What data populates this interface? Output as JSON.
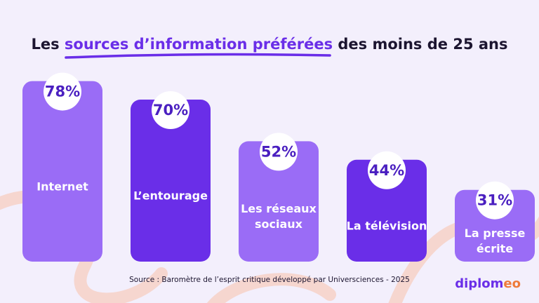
{
  "title": {
    "prefix": "Les",
    "highlight": "sources d’information préférées",
    "suffix": "des moins de 25 ans"
  },
  "source": "Source : Baromètre de l’esprit critique développé par Universciences - 2025",
  "brand": {
    "main": "diplom",
    "accent": "eo"
  },
  "colors": {
    "background": "#f3effc",
    "bar_light": "#9a6cf6",
    "bar_dark": "#6a2ee8",
    "value_text": "#4a1fc0",
    "accent_curve": "#f6d6cf",
    "brand_accent": "#ee7a3a"
  },
  "chart_data": {
    "type": "bar",
    "categories": [
      "Internet",
      "L’entourage",
      "Les réseaux sociaux",
      "La télévision",
      "La presse écrite"
    ],
    "category_lines": [
      [
        "Internet"
      ],
      [
        "L’entourage"
      ],
      [
        "Les réseaux",
        "sociaux"
      ],
      [
        "La télévision"
      ],
      [
        "La presse",
        "écrite"
      ]
    ],
    "values": [
      78,
      70,
      52,
      44,
      31
    ],
    "value_labels": [
      "78%",
      "70%",
      "52%",
      "44%",
      "31%"
    ],
    "bar_shades": [
      "light",
      "dark",
      "light",
      "dark",
      "light"
    ],
    "ylim": [
      0,
      100
    ],
    "unit": "%",
    "grid": false,
    "legend": false
  }
}
